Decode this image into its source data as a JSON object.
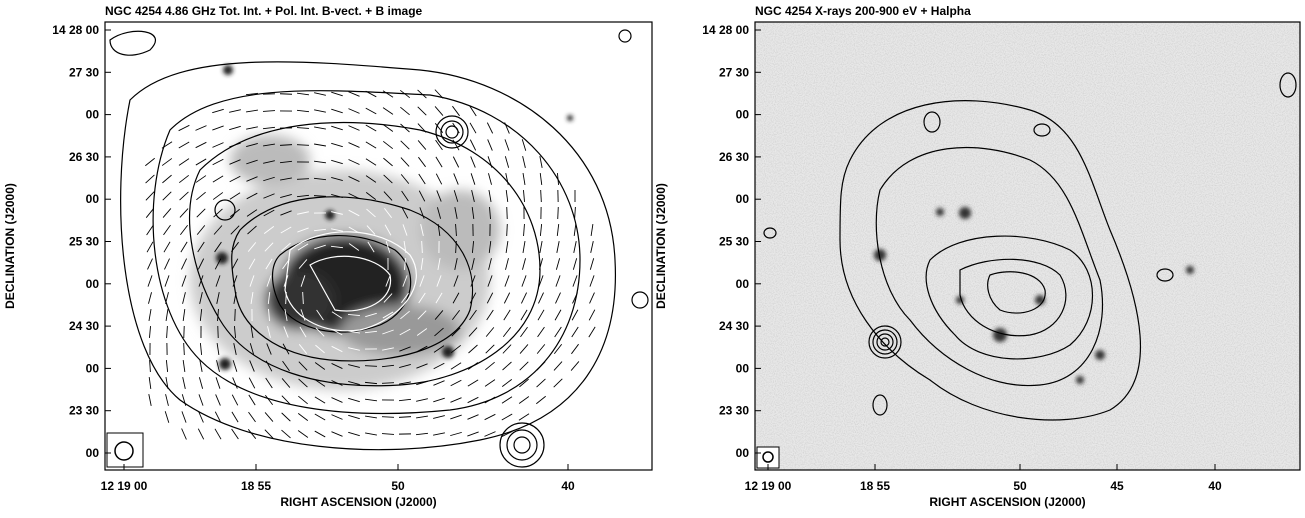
{
  "panels": [
    {
      "title": "NGC 4254  4.86  GHz Tot. Int. + Pol. Int. B-vect. + B image",
      "x_label": "RIGHT ASCENSION (J2000)",
      "y_label": "DECLINATION (J2000)",
      "x_ticks": [
        "12 19 00",
        "18 55",
        "50",
        "40"
      ],
      "y_ticks": [
        "14 28 00",
        "27 30",
        "00",
        "26 30",
        "00",
        "25 30",
        "00",
        "24 30",
        "00",
        "23 30",
        "00"
      ]
    },
    {
      "title": "NGC 4254 X-rays 200-900 eV + Halpha",
      "x_label": "RIGHT ASCENSION (J2000)",
      "y_label": "DECLINATION (J2000)",
      "x_ticks": [
        "12 19 00",
        "18 55",
        "50",
        "45",
        "40"
      ],
      "y_ticks": [
        "14 28 00",
        "27 30",
        "00",
        "26 30",
        "00",
        "25 30",
        "00",
        "24 30",
        "00",
        "23 30",
        "00"
      ]
    }
  ]
}
